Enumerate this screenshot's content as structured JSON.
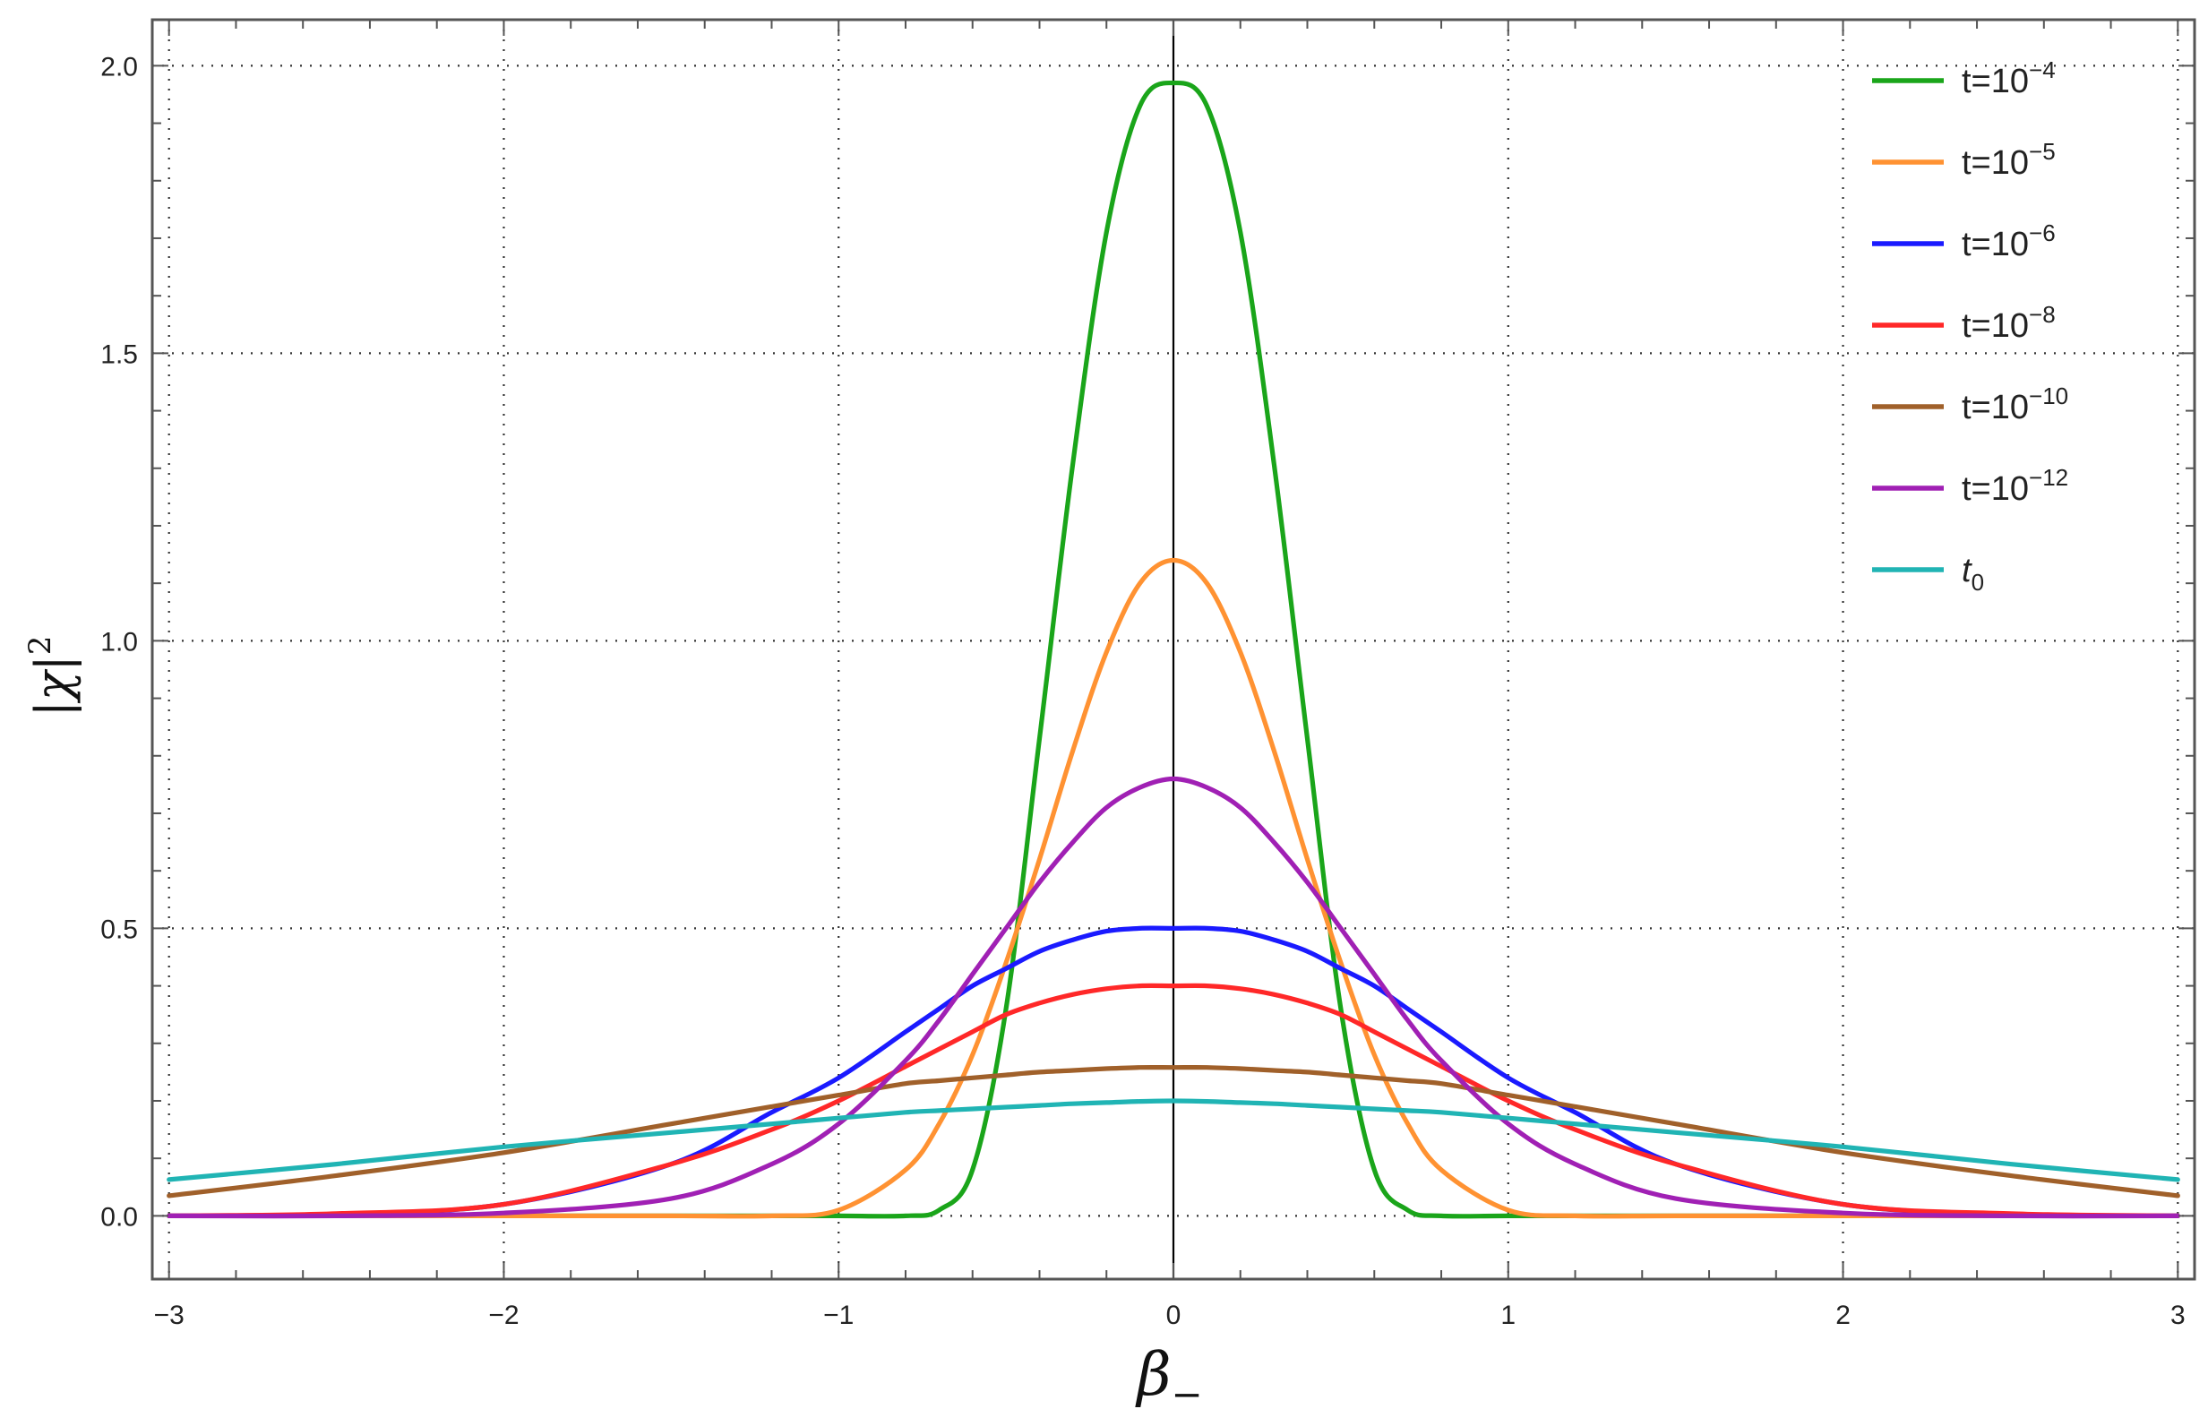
{
  "chart_data": {
    "type": "line",
    "title": "",
    "xlabel": {
      "base": "β",
      "sub": "−"
    },
    "ylabel": {
      "base": "|χ|",
      "sup": "2"
    },
    "xlim": [
      -3.05,
      3.05
    ],
    "ylim": [
      -0.11,
      2.08
    ],
    "x_ticks": [
      -3,
      -2,
      -1,
      0,
      1,
      2,
      3
    ],
    "x_tick_labels": [
      "−3",
      "−2",
      "−1",
      "0",
      "1",
      "2",
      "3"
    ],
    "y_ticks": [
      0.0,
      0.5,
      1.0,
      1.5,
      2.0
    ],
    "y_tick_labels": [
      "0.0",
      "0.5",
      "1.0",
      "1.5",
      "2.0"
    ],
    "grid": "dotted",
    "legend_position": "top-right",
    "x": [
      -3.0,
      -2.5,
      -2.0,
      -1.5,
      -1.2,
      -1.0,
      -0.8,
      -0.7,
      -0.6,
      -0.5,
      -0.4,
      -0.3,
      -0.2,
      -0.1,
      0.0,
      0.1,
      0.2,
      0.3,
      0.4,
      0.5,
      0.6,
      0.7,
      0.8,
      1.0,
      1.2,
      1.5,
      2.0,
      2.5,
      3.0
    ],
    "series": [
      {
        "name": {
          "base": "t=10",
          "sup": "−4",
          "sub": ""
        },
        "color": "#1aa51a",
        "values": [
          0.0,
          0.0,
          0.0,
          0.0,
          0.0,
          0.0,
          0.0,
          0.01,
          0.08,
          0.36,
          0.83,
          1.31,
          1.71,
          1.93,
          1.97,
          1.93,
          1.71,
          1.31,
          0.83,
          0.36,
          0.08,
          0.01,
          0.0,
          0.0,
          0.0,
          0.0,
          0.0,
          0.0,
          0.0
        ]
      },
      {
        "name": {
          "base": "t=10",
          "sup": "−5",
          "sub": ""
        },
        "color": "#ff9232",
        "values": [
          0.0,
          0.0,
          0.0,
          0.0,
          0.0,
          0.01,
          0.08,
          0.16,
          0.28,
          0.44,
          0.62,
          0.81,
          0.98,
          1.1,
          1.14,
          1.1,
          0.98,
          0.81,
          0.62,
          0.44,
          0.28,
          0.16,
          0.08,
          0.01,
          0.0,
          0.0,
          0.0,
          0.0,
          0.0
        ]
      },
      {
        "name": {
          "base": "t=10",
          "sup": "−6",
          "sub": ""
        },
        "color": "#1a1aff",
        "values": [
          0.0,
          0.003,
          0.02,
          0.09,
          0.18,
          0.24,
          0.32,
          0.36,
          0.4,
          0.43,
          0.46,
          0.48,
          0.495,
          0.5,
          0.5,
          0.5,
          0.495,
          0.48,
          0.46,
          0.43,
          0.4,
          0.36,
          0.32,
          0.24,
          0.18,
          0.09,
          0.02,
          0.003,
          0.0
        ]
      },
      {
        "name": {
          "base": "t=10",
          "sup": "−8",
          "sub": ""
        },
        "color": "#ff2828",
        "values": [
          0.0,
          0.004,
          0.02,
          0.09,
          0.15,
          0.2,
          0.26,
          0.29,
          0.32,
          0.35,
          0.37,
          0.385,
          0.395,
          0.4,
          0.4,
          0.4,
          0.395,
          0.385,
          0.37,
          0.35,
          0.32,
          0.29,
          0.26,
          0.2,
          0.15,
          0.09,
          0.02,
          0.004,
          0.0
        ]
      },
      {
        "name": {
          "base": "t=10",
          "sup": "−10",
          "sub": ""
        },
        "color": "#a0602a",
        "values": [
          0.035,
          0.07,
          0.11,
          0.16,
          0.19,
          0.21,
          0.23,
          0.235,
          0.24,
          0.245,
          0.25,
          0.253,
          0.256,
          0.258,
          0.258,
          0.258,
          0.256,
          0.253,
          0.25,
          0.245,
          0.24,
          0.235,
          0.23,
          0.21,
          0.19,
          0.16,
          0.11,
          0.07,
          0.035
        ]
      },
      {
        "name": {
          "base": "t=10",
          "sup": "−12",
          "sub": ""
        },
        "color": "#a020b4",
        "values": [
          0.0,
          0.0,
          0.005,
          0.03,
          0.09,
          0.16,
          0.27,
          0.34,
          0.42,
          0.5,
          0.58,
          0.65,
          0.71,
          0.745,
          0.76,
          0.745,
          0.71,
          0.65,
          0.58,
          0.5,
          0.42,
          0.34,
          0.27,
          0.16,
          0.09,
          0.03,
          0.005,
          0.0,
          0.0
        ]
      },
      {
        "name": {
          "base": "t",
          "sup": "",
          "sub": "0"
        },
        "color": "#20b4b4",
        "values": [
          0.063,
          0.09,
          0.12,
          0.145,
          0.16,
          0.17,
          0.18,
          0.183,
          0.186,
          0.189,
          0.192,
          0.195,
          0.197,
          0.199,
          0.2,
          0.199,
          0.197,
          0.195,
          0.192,
          0.189,
          0.186,
          0.183,
          0.18,
          0.17,
          0.16,
          0.145,
          0.12,
          0.09,
          0.063
        ]
      }
    ]
  }
}
